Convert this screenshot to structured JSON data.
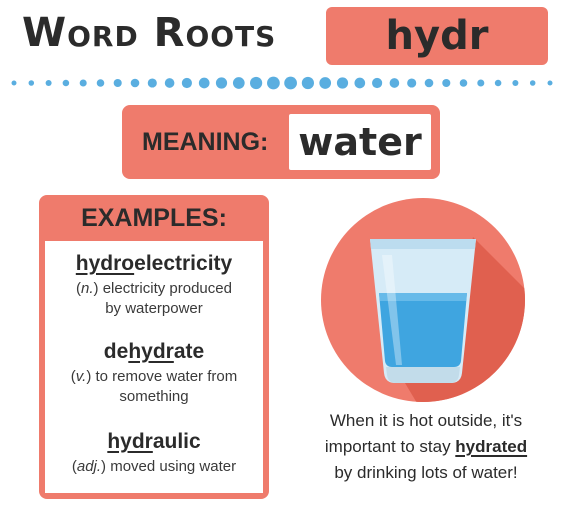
{
  "header": {
    "title": "Word Roots",
    "root": "hydr"
  },
  "meaning": {
    "label": "MEANING:",
    "value": "water"
  },
  "examples": {
    "heading": "EXAMPLES:",
    "items": [
      {
        "root_part": "hydro",
        "rest": "electricity",
        "pos": "n.",
        "def_line1": "electricity produced",
        "def_line2": "by waterpower"
      },
      {
        "prefix": "de",
        "root_part": "hydr",
        "rest": "ate",
        "pos": "v.",
        "def_line1": "to remove water from",
        "def_line2": "something"
      },
      {
        "root_part": "hydr",
        "rest": "aulic",
        "pos": "adj.",
        "def_line1": "moved using water"
      }
    ]
  },
  "caption": {
    "line1": "When it is hot outside, it's",
    "line2_pre": "important to stay ",
    "line2_highlight": "hydrated",
    "line3": "by drinking lots of water!"
  },
  "colors": {
    "accent": "#ef7b6c",
    "dots": "#5aaee0",
    "circle": "#ef7b6c",
    "circle_shadow": "#e0604f",
    "water": "#3fa5e0",
    "glass": "#cde6f4",
    "text": "#2b2b2b"
  },
  "icons": {
    "illustration": "water-glass-icon"
  }
}
